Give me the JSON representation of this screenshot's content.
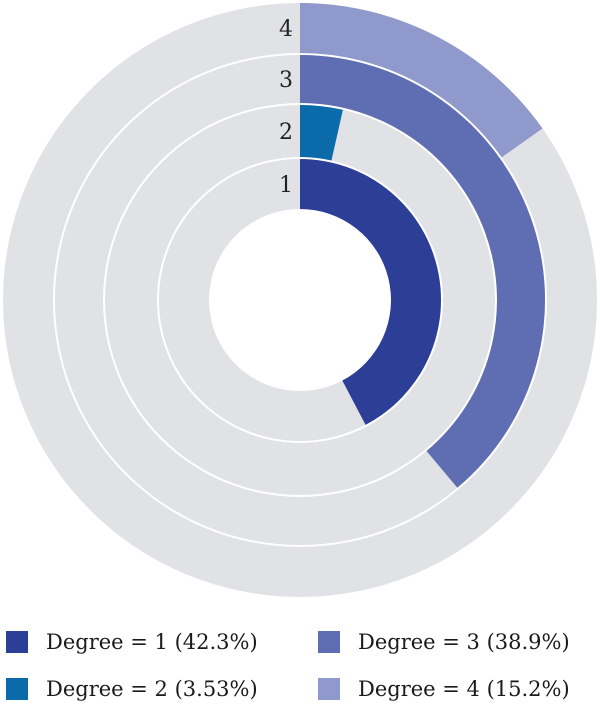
{
  "chart_data": {
    "type": "pie",
    "subtype": "concentric-radial-rings",
    "track_color": "#e1e2e5",
    "series": [
      {
        "ring": "1",
        "name": "Degree = 1",
        "value": 42.3,
        "display": "42.3%",
        "color": "#2d3e96"
      },
      {
        "ring": "2",
        "name": "Degree = 2",
        "value": 3.53,
        "display": "3.53%",
        "color": "#0b6aaa"
      },
      {
        "ring": "3",
        "name": "Degree = 3",
        "value": 38.9,
        "display": "38.9%",
        "color": "#5f6db3"
      },
      {
        "ring": "4",
        "name": "Degree = 4",
        "value": 15.2,
        "display": "15.2%",
        "color": "#8f99cc"
      }
    ],
    "legend": {
      "placement": "bottom",
      "items": [
        "Degree = 1 (42.3%)",
        "Degree = 2 (3.53%)",
        "Degree = 3 (38.9%)",
        "Degree = 4 (15.2%)"
      ]
    }
  }
}
